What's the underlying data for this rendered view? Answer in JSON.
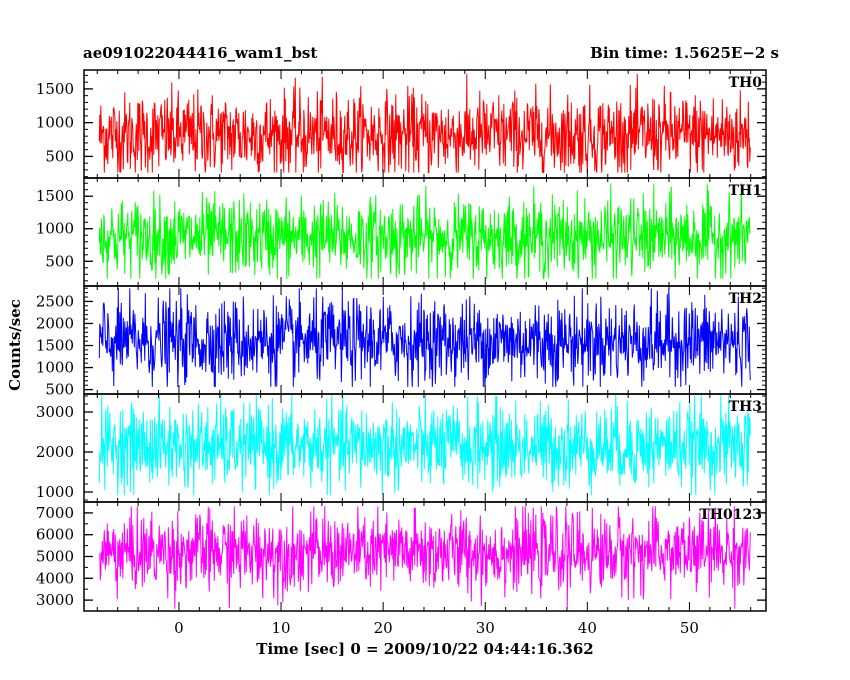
{
  "header": {
    "left_title": "ae091022044416_wam1_bst",
    "right_title": "Bin time: 1.5625E−2 s"
  },
  "chart_data": {
    "type": "line",
    "xlabel": "Time [sec] 0 = 2009/10/22 04:44:16.362",
    "ylabel": "Counts/sec",
    "xlim": [
      -9.3,
      57.5
    ],
    "x_range_data": [
      -7.8,
      56.0
    ],
    "x_ticks": [
      0,
      10,
      20,
      30,
      40,
      50
    ],
    "x_tick_labels": [
      "0",
      "10",
      "20",
      "30",
      "40",
      "50"
    ],
    "x_minor_step": 2,
    "panels": [
      {
        "name": "TH0",
        "color": "#ff0000",
        "ylim": [
          180,
          1780
        ],
        "y_ticks": [
          500,
          1000,
          1500
        ],
        "y_tick_labels": [
          "500",
          "1000",
          "1500"
        ],
        "y_minor_step": 100,
        "level": {
          "mean": 820,
          "sd": 310,
          "min": 260,
          "max": 1720
        }
      },
      {
        "name": "TH1",
        "color": "#00ff00",
        "ylim": [
          120,
          1780
        ],
        "y_ticks": [
          500,
          1000,
          1500
        ],
        "y_tick_labels": [
          "500",
          "1000",
          "1500"
        ],
        "y_minor_step": 100,
        "level": {
          "mean": 870,
          "sd": 300,
          "min": 230,
          "max": 1700
        }
      },
      {
        "name": "TH2",
        "color": "#0000ff",
        "ylim": [
          400,
          2850
        ],
        "y_ticks": [
          500,
          1000,
          1500,
          2000,
          2500
        ],
        "y_tick_labels": [
          "500",
          "1000",
          "1500",
          "2000",
          "2500"
        ],
        "y_minor_step": 100,
        "level": {
          "mean": 1600,
          "sd": 480,
          "min": 560,
          "max": 2800
        }
      },
      {
        "name": "TH3",
        "color": "#00ffff",
        "ylim": [
          750,
          3450
        ],
        "y_ticks": [
          1000,
          2000,
          3000
        ],
        "y_tick_labels": [
          "1000",
          "2000",
          "3000"
        ],
        "y_minor_step": 200,
        "level": {
          "mean": 2150,
          "sd": 520,
          "min": 920,
          "max": 3420
        }
      },
      {
        "name": "TH0123",
        "color": "#ff00ff",
        "ylim": [
          2500,
          7500
        ],
        "y_ticks": [
          3000,
          4000,
          5000,
          6000,
          7000
        ],
        "y_tick_labels": [
          "3000",
          "4000",
          "5000",
          "6000",
          "7000"
        ],
        "y_minor_step": 500,
        "level": {
          "mean": 5200,
          "sd": 900,
          "min": 2600,
          "max": 7300
        }
      }
    ]
  }
}
